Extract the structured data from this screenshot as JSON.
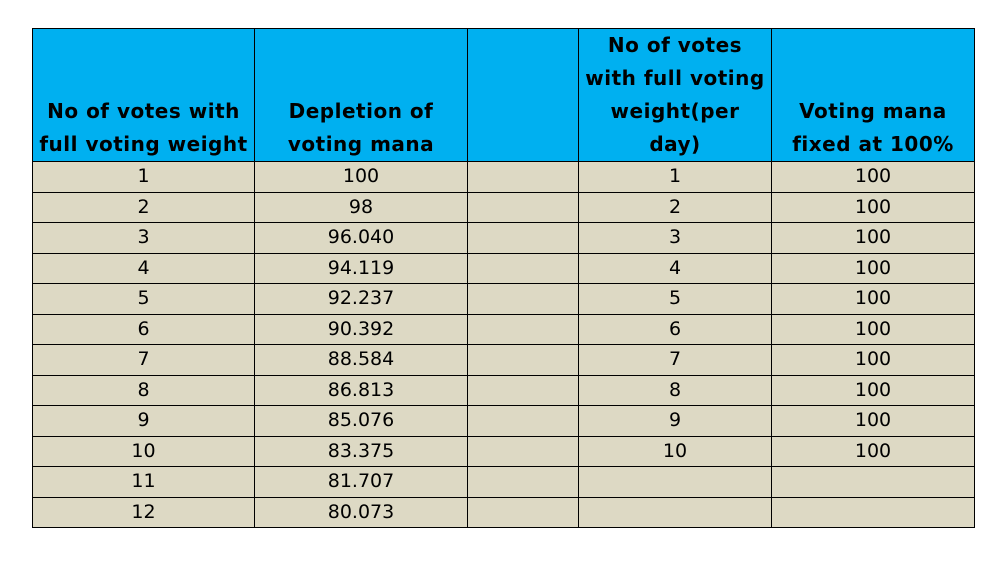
{
  "table": {
    "headers": [
      "No of votes with full voting weight",
      "Depletion of voting mana",
      "",
      "No of votes with full voting weight(per day)",
      "Voting mana fixed at 100%"
    ],
    "rows": [
      [
        "1",
        "100",
        "",
        "1",
        "100"
      ],
      [
        "2",
        "98",
        "",
        "2",
        "100"
      ],
      [
        "3",
        "96.040",
        "",
        "3",
        "100"
      ],
      [
        "4",
        "94.119",
        "",
        "4",
        "100"
      ],
      [
        "5",
        "92.237",
        "",
        "5",
        "100"
      ],
      [
        "6",
        "90.392",
        "",
        "6",
        "100"
      ],
      [
        "7",
        "88.584",
        "",
        "7",
        "100"
      ],
      [
        "8",
        "86.813",
        "",
        "8",
        "100"
      ],
      [
        "9",
        "85.076",
        "",
        "9",
        "100"
      ],
      [
        "10",
        "83.375",
        "",
        "10",
        "100"
      ],
      [
        "11",
        "81.707",
        "",
        "",
        ""
      ],
      [
        "12",
        "80.073",
        "",
        "",
        ""
      ]
    ]
  },
  "colors": {
    "header_background": "#00b0f0",
    "cell_background": "#ddd9c4",
    "border": "#000000"
  }
}
